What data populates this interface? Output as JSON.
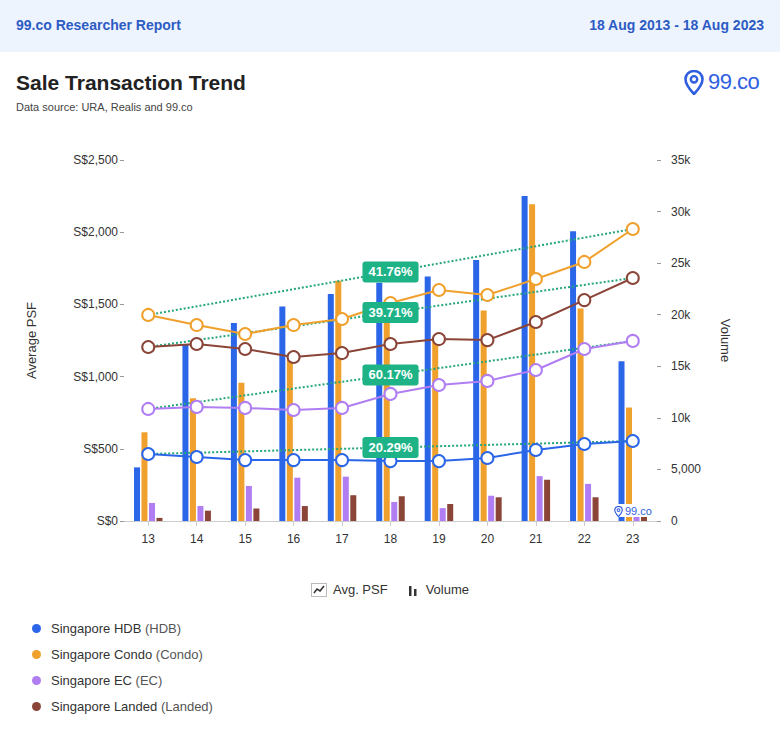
{
  "header": {
    "left": "99.co Researcher Report",
    "right": "18 Aug 2013 - 18 Aug 2023"
  },
  "logo": "99.co",
  "chart_data": {
    "type": "combo",
    "title": "Sale Transaction Trend",
    "subtitle": "Data source: URA, Realis and 99.co",
    "watermark": "99.co",
    "y_label": "Average PSF",
    "y2_label": "Volume",
    "categories": [
      "13",
      "14",
      "15",
      "16",
      "17",
      "18",
      "19",
      "20",
      "21",
      "22",
      "23"
    ],
    "ylim": [
      0,
      2500
    ],
    "yticks": [
      {
        "value": 0,
        "label": "S$0"
      },
      {
        "value": 500,
        "label": "S$500"
      },
      {
        "value": 1000,
        "label": "S$1,000"
      },
      {
        "value": 1500,
        "label": "S$1,500"
      },
      {
        "value": 2000,
        "label": "S$2,000"
      },
      {
        "value": 2500,
        "label": "S$2,500"
      }
    ],
    "y2lim": [
      0,
      35000
    ],
    "y2ticks": [
      0,
      {
        "value": 5000,
        "label": "5,000"
      },
      {
        "value": 10000,
        "label": "10k"
      },
      {
        "value": 15000,
        "label": "15k"
      },
      {
        "value": 20000,
        "label": "20k"
      },
      {
        "value": 25000,
        "label": "25k"
      },
      {
        "value": 30000,
        "label": "30k"
      },
      {
        "value": 35000,
        "label": "35k"
      }
    ],
    "grid": false,
    "legend": "bottom",
    "measures": [
      {
        "name": "Avg. PSF",
        "type": "line",
        "axis": "y",
        "marker": "emptyCircle"
      },
      {
        "name": "Volume",
        "type": "bar",
        "axis": "y2"
      }
    ],
    "series": [
      {
        "name": "Singapore HDB (HDB)",
        "color": "#2b66e8",
        "values": [
          464,
          443,
          422,
          422,
          422,
          415,
          415,
          436,
          492,
          533,
          554
        ],
        "volume": [
          5200,
          17100,
          19200,
          20800,
          22000,
          23100,
          23700,
          25300,
          31500,
          28100,
          15500
        ]
      },
      {
        "name": "Singapore Condo (Condo)",
        "color": "#f0a02c",
        "values": [
          1427,
          1357,
          1295,
          1357,
          1399,
          1510,
          1600,
          1565,
          1676,
          1794,
          2022
        ],
        "volume": [
          8600,
          11900,
          13400,
          15600,
          23300,
          21400,
          17700,
          20400,
          30700,
          20600,
          11000
        ]
      },
      {
        "name": "Singapore EC (EC)",
        "color": "#b07ef2",
        "values": [
          776,
          790,
          783,
          769,
          783,
          880,
          942,
          970,
          1046,
          1191,
          1247
        ],
        "volume": [
          1750,
          1450,
          3400,
          4200,
          4300,
          1850,
          1250,
          2450,
          4350,
          3600,
          1000
        ]
      },
      {
        "name": "Singapore Landed (Landed)",
        "color": "#8a4538",
        "values": [
          1205,
          1226,
          1191,
          1136,
          1163,
          1226,
          1260,
          1253,
          1378,
          1530,
          1683
        ],
        "volume": [
          300,
          1000,
          1200,
          1450,
          2500,
          2400,
          1650,
          2300,
          4000,
          2300,
          1500
        ]
      }
    ],
    "annotations": [
      {
        "series": "Singapore Condo (Condo)",
        "text": "41.76%"
      },
      {
        "series": "Singapore Landed (Landed)",
        "text": "39.71%"
      },
      {
        "series": "Singapore EC (EC)",
        "text": "60.17%"
      },
      {
        "series": "Singapore HDB (HDB)",
        "text": "20.29%"
      }
    ]
  }
}
